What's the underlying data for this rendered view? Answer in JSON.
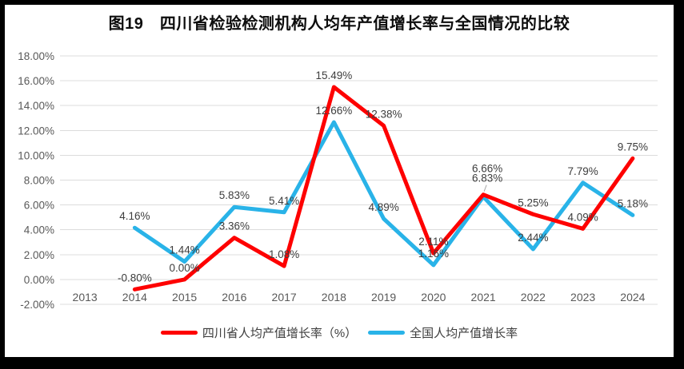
{
  "title": "图19　四川省检验检测机构人均年产值增长率与全国情况的比较",
  "colors": {
    "sichuan_line": "#fe0000",
    "national_line": "#29b3e8",
    "gridline": "#dcdcdc",
    "axis_text": "#595959",
    "data_label_text": "#3d3d3d",
    "leader_line": "#a6a6a6",
    "frame_border": "#000000"
  },
  "chart_data": {
    "type": "line",
    "title": "图19　四川省检验检测机构人均年产值增长率与全国情况的比较",
    "categories": [
      "2013",
      "2014",
      "2015",
      "2016",
      "2017",
      "2018",
      "2019",
      "2020",
      "2021",
      "2022",
      "2023",
      "2024"
    ],
    "y_axis": {
      "min": -2,
      "max": 18,
      "step": 2,
      "tick_labels": [
        "18.00%",
        "16.00%",
        "14.00%",
        "12.00%",
        "10.00%",
        "8.00%",
        "6.00%",
        "4.00%",
        "2.00%",
        "0.00%",
        "-2.00%"
      ]
    },
    "grid": true,
    "legend_position": "bottom",
    "series": [
      {
        "name": "四川省人均产值增长率（%）",
        "color": "#fe0000",
        "values": [
          null,
          -0.8,
          0.0,
          3.36,
          1.08,
          15.49,
          12.38,
          2.11,
          6.83,
          5.25,
          4.09,
          9.75
        ],
        "labels": [
          null,
          "-0.80%",
          "0.00%",
          "3.36%",
          "1.08%",
          "15.49%",
          "12.38%",
          "2.11%",
          "6.83%",
          "5.25%",
          "4.09%",
          "9.75%"
        ],
        "label_overrides": {
          "2021": {
            "dx": 5,
            "dy": -16,
            "leader": true
          }
        }
      },
      {
        "name": "全国人均产值增长率",
        "color": "#29b3e8",
        "values": [
          null,
          4.16,
          1.44,
          5.83,
          5.41,
          12.66,
          4.89,
          1.16,
          6.66,
          2.44,
          7.79,
          5.18
        ],
        "labels": [
          null,
          "4.16%",
          "1.44%",
          "5.83%",
          "5.41%",
          "12.66%",
          "4.89%",
          "1.16%",
          "6.66%",
          "2.44%",
          "7.79%",
          "5.18%"
        ],
        "label_overrides": {
          "2021": {
            "dx": 5,
            "dy": -31
          }
        }
      }
    ]
  }
}
